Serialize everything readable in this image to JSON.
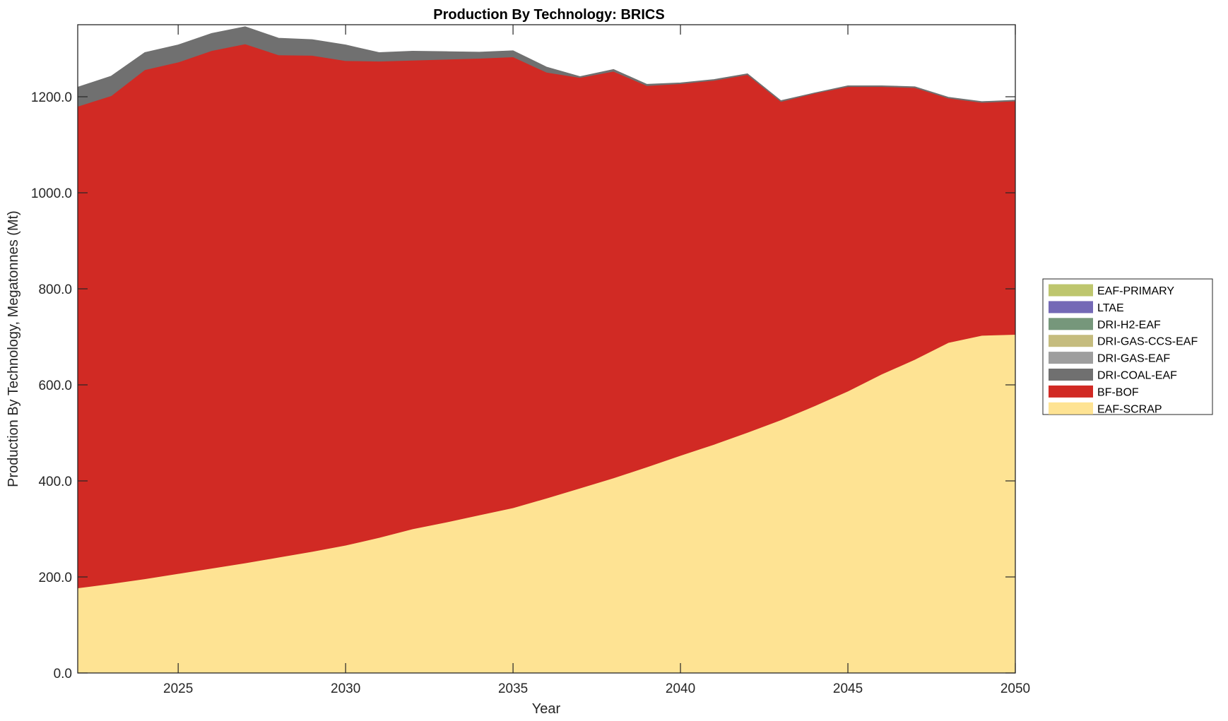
{
  "chart_data": {
    "type": "area",
    "stacked": true,
    "title": "Production By Technology: BRICS",
    "xlabel": "Year",
    "ylabel": "Production By Technology, Megatonnes (Mt)",
    "xlim": [
      2022,
      2050
    ],
    "ylim": [
      0,
      1350
    ],
    "xticks": [
      2025,
      2030,
      2035,
      2040,
      2045,
      2050
    ],
    "xtick_labels": [
      "2025",
      "2030",
      "2035",
      "2040",
      "2045",
      "2050"
    ],
    "yticks": [
      0,
      200,
      400,
      600,
      800,
      1000,
      1200
    ],
    "ytick_labels": [
      "0.0",
      "200.0",
      "400.0",
      "600.0",
      "800.0",
      "1000.0",
      "1200.0"
    ],
    "grid": false,
    "legend_position": "right",
    "x": [
      2022,
      2023,
      2024,
      2025,
      2026,
      2027,
      2028,
      2029,
      2030,
      2031,
      2032,
      2033,
      2034,
      2035,
      2036,
      2037,
      2038,
      2039,
      2040,
      2041,
      2042,
      2043,
      2044,
      2045,
      2046,
      2047,
      2048,
      2049,
      2050
    ],
    "series": [
      {
        "name": "EAF-SCRAP",
        "color": "#FEE393",
        "values": [
          177,
          186,
          196,
          207,
          218,
          229,
          241,
          253,
          266,
          282,
          300,
          314,
          329,
          344,
          364,
          385,
          406,
          429,
          453,
          476,
          501,
          527,
          556,
          587,
          622,
          653,
          688,
          703,
          705
        ]
      },
      {
        "name": "BF-BOF",
        "color": "#D12A24",
        "values": [
          1003,
          1016,
          1060,
          1065,
          1078,
          1081,
          1046,
          1033,
          1009,
          992,
          976,
          964,
          951,
          939,
          887,
          855,
          847,
          794,
          774,
          758,
          745,
          663,
          651,
          634,
          599,
          566,
          509,
          485,
          486
        ]
      },
      {
        "name": "DRI-COAL-EAF",
        "color": "#707070",
        "values": [
          40,
          41,
          36,
          36,
          36,
          36,
          35,
          33,
          33,
          18,
          19,
          16,
          13,
          13,
          11,
          2,
          4,
          3,
          2,
          2,
          2,
          2,
          1,
          2,
          2,
          2,
          2,
          2,
          2
        ]
      },
      {
        "name": "DRI-GAS-EAF",
        "color": "#9E9E9E",
        "values": [
          0,
          0,
          0,
          0,
          0,
          0,
          0,
          0,
          0,
          0,
          0,
          0,
          0,
          0,
          0,
          0,
          0,
          0,
          0,
          0,
          0,
          0,
          0,
          0,
          0,
          0,
          0,
          0,
          0
        ]
      },
      {
        "name": "DRI-GAS-CCS-EAF",
        "color": "#C5BC7E",
        "values": [
          0,
          0,
          0,
          0,
          0,
          0,
          0,
          0,
          0,
          0,
          0,
          0,
          0,
          0,
          0,
          0,
          0,
          0,
          0,
          0,
          0,
          0,
          0,
          0,
          0,
          0,
          0,
          0,
          0
        ]
      },
      {
        "name": "DRI-H2-EAF",
        "color": "#76977B",
        "values": [
          0,
          0,
          0,
          0,
          0,
          0,
          0,
          0,
          0,
          0,
          0,
          0,
          0,
          0,
          0,
          0,
          0,
          0,
          0,
          0,
          0,
          0,
          0,
          0,
          0,
          0,
          0,
          0,
          0
        ]
      },
      {
        "name": "LTAE",
        "color": "#7469B6",
        "values": [
          0,
          0,
          0,
          0,
          0,
          0,
          0,
          0,
          0,
          0,
          0,
          0,
          0,
          0,
          0,
          0,
          0,
          0,
          0,
          0,
          0,
          0,
          0,
          0,
          0,
          0,
          0,
          0,
          0
        ]
      },
      {
        "name": "EAF-PRIMARY",
        "color": "#BEC66E",
        "values": [
          0,
          0,
          0,
          0,
          0,
          0,
          0,
          0,
          0,
          0,
          0,
          0,
          0,
          0,
          0,
          0,
          0,
          0,
          0,
          0,
          0,
          0,
          0,
          0,
          0,
          0,
          0,
          0,
          0
        ]
      }
    ],
    "legend_order": [
      "EAF-PRIMARY",
      "LTAE",
      "DRI-H2-EAF",
      "DRI-GAS-CCS-EAF",
      "DRI-GAS-EAF",
      "DRI-COAL-EAF",
      "BF-BOF",
      "EAF-SCRAP"
    ]
  }
}
